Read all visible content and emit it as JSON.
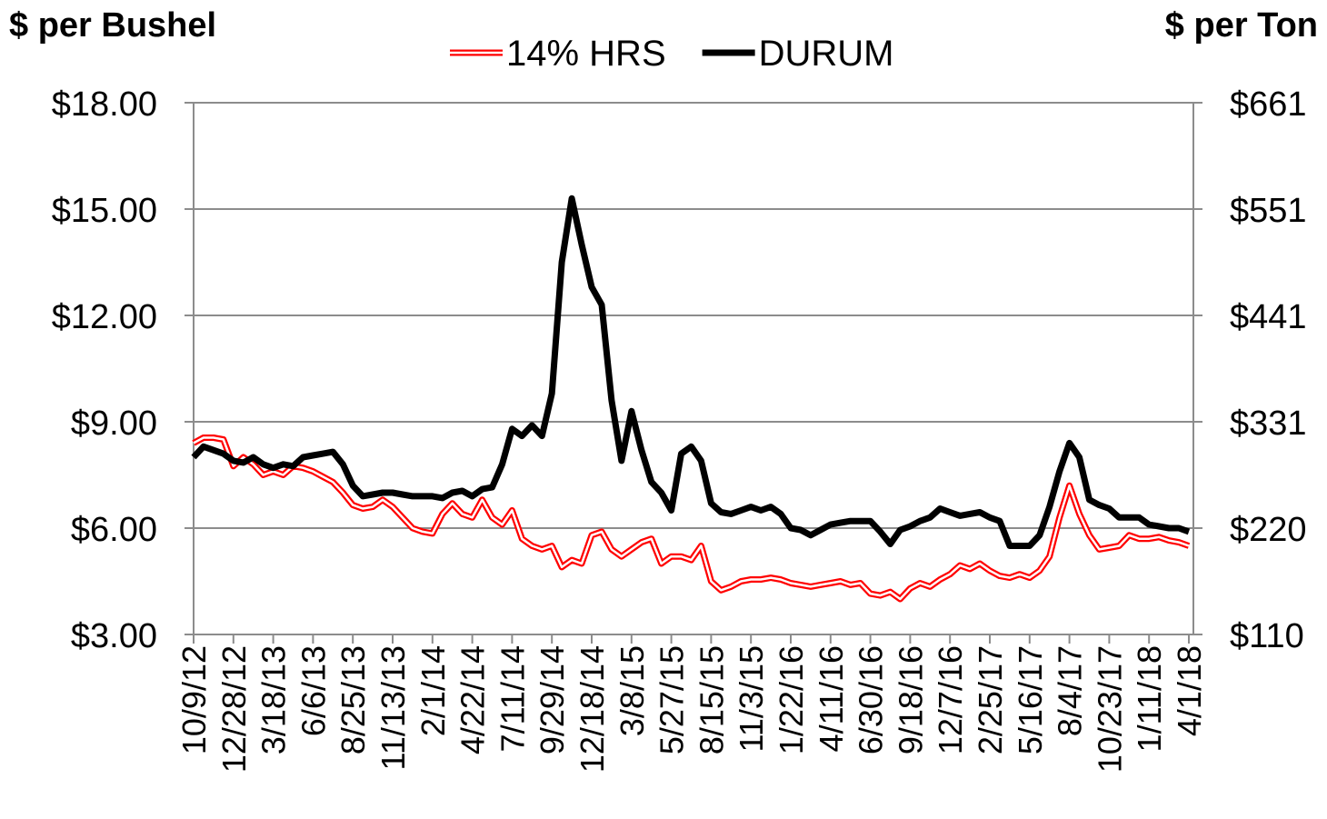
{
  "chart_data": {
    "type": "line",
    "y_label": "$ per Bushel",
    "y2_label": "$ per Ton",
    "categories": [
      "10/9/12",
      null,
      null,
      null,
      "12/28/12",
      null,
      null,
      null,
      "3/18/13",
      null,
      null,
      null,
      "6/6/13",
      null,
      null,
      null,
      "8/25/13",
      null,
      null,
      null,
      "11/13/13",
      null,
      null,
      null,
      "2/1/14",
      null,
      null,
      null,
      "4/22/14",
      null,
      null,
      null,
      "7/11/14",
      null,
      null,
      null,
      "9/29/14",
      null,
      null,
      null,
      "12/18/14",
      null,
      null,
      null,
      "3/8/15",
      null,
      null,
      null,
      "5/27/15",
      null,
      null,
      null,
      "8/15/15",
      null,
      null,
      null,
      "11/3/15",
      null,
      null,
      null,
      "1/22/16",
      null,
      null,
      null,
      "4/11/16",
      null,
      null,
      null,
      "6/30/16",
      null,
      null,
      null,
      "9/18/16",
      null,
      null,
      null,
      "12/7/16",
      null,
      null,
      null,
      "2/25/17",
      null,
      null,
      null,
      "5/16/17",
      null,
      null,
      null,
      "8/4/17",
      null,
      null,
      null,
      "10/23/17",
      null,
      null,
      null,
      "1/11/18",
      null,
      null,
      null,
      "4/1/18"
    ],
    "series": [
      {
        "name": "14% HRS",
        "color": "#ff0000",
        "line_style": "double",
        "values": [
          8.4,
          8.55,
          8.55,
          8.5,
          7.75,
          8.0,
          7.8,
          7.5,
          7.6,
          7.5,
          7.75,
          7.7,
          7.6,
          7.45,
          7.3,
          7.0,
          6.65,
          6.55,
          6.6,
          6.8,
          6.6,
          6.3,
          6.0,
          5.9,
          5.85,
          6.4,
          6.7,
          6.4,
          6.3,
          6.8,
          6.3,
          6.1,
          6.5,
          5.7,
          5.5,
          5.4,
          5.5,
          4.9,
          5.1,
          5.0,
          5.8,
          5.9,
          5.4,
          5.2,
          5.4,
          5.6,
          5.7,
          5.0,
          5.2,
          5.2,
          5.1,
          5.5,
          4.5,
          4.25,
          4.35,
          4.5,
          4.55,
          4.55,
          4.6,
          4.55,
          4.45,
          4.4,
          4.35,
          4.4,
          4.45,
          4.5,
          4.4,
          4.45,
          4.15,
          4.1,
          4.2,
          4.0,
          4.3,
          4.45,
          4.35,
          4.55,
          4.7,
          4.95,
          4.85,
          5.0,
          4.8,
          4.65,
          4.6,
          4.7,
          4.6,
          4.8,
          5.2,
          6.3,
          7.2,
          6.4,
          5.8,
          5.4,
          5.45,
          5.5,
          5.8,
          5.7,
          5.7,
          5.75,
          5.65,
          5.6,
          5.5
        ]
      },
      {
        "name": "DURUM",
        "color": "#000000",
        "line_style": "solid",
        "values": [
          8.0,
          8.3,
          8.2,
          8.1,
          7.9,
          7.85,
          8.0,
          7.8,
          7.7,
          7.8,
          7.75,
          8.0,
          8.05,
          8.1,
          8.15,
          7.8,
          7.2,
          6.9,
          6.95,
          7.0,
          7.0,
          6.95,
          6.9,
          6.9,
          6.9,
          6.85,
          7.0,
          7.05,
          6.9,
          7.1,
          7.15,
          7.8,
          8.8,
          8.6,
          8.9,
          8.6,
          9.8,
          13.5,
          15.3,
          14.0,
          12.8,
          12.3,
          9.6,
          7.9,
          9.3,
          8.2,
          7.3,
          7.0,
          6.5,
          8.1,
          8.3,
          7.9,
          6.7,
          6.45,
          6.4,
          6.5,
          6.6,
          6.5,
          6.6,
          6.4,
          6.0,
          5.95,
          5.8,
          5.95,
          6.1,
          6.15,
          6.2,
          6.2,
          6.2,
          5.9,
          5.55,
          5.95,
          6.05,
          6.2,
          6.3,
          6.55,
          6.45,
          6.35,
          6.4,
          6.45,
          6.3,
          6.2,
          5.5,
          5.5,
          5.5,
          5.8,
          6.6,
          7.6,
          8.4,
          8.0,
          6.8,
          6.65,
          6.55,
          6.3,
          6.3,
          6.3,
          6.1,
          6.05,
          6.0,
          6.0,
          5.9
        ]
      }
    ],
    "ylim": [
      3,
      18
    ],
    "yticks": [
      {
        "value": 3,
        "label": "$3.00"
      },
      {
        "value": 6,
        "label": "$6.00"
      },
      {
        "value": 9,
        "label": "$9.00"
      },
      {
        "value": 12,
        "label": "$12.00"
      },
      {
        "value": 15,
        "label": "$15.00"
      },
      {
        "value": 18,
        "label": "$18.00"
      }
    ],
    "y2lim": [
      110.23,
      661.39
    ],
    "y2ticks": [
      {
        "value": 110.23,
        "label": "$110"
      },
      {
        "value": 220.46,
        "label": "$220"
      },
      {
        "value": 330.69,
        "label": "$331"
      },
      {
        "value": 440.92,
        "label": "$441"
      },
      {
        "value": 551.16,
        "label": "$551"
      },
      {
        "value": 661.39,
        "label": "$661"
      }
    ],
    "grid": true,
    "legend": "top"
  }
}
